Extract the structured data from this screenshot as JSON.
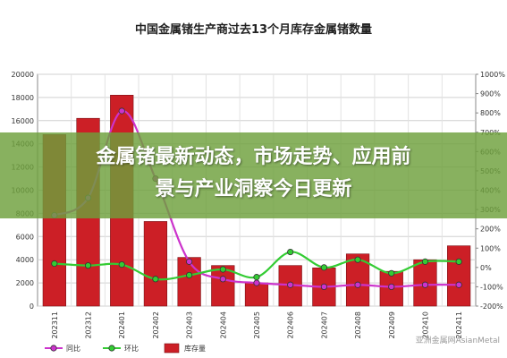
{
  "chart_data": {
    "type": "bar",
    "title": "中国金属锗生产商过去13个月库存金属锗数量",
    "categories": [
      "202311",
      "202312",
      "202401",
      "202402",
      "202403",
      "202404",
      "202405",
      "202406",
      "202407",
      "202408",
      "202409",
      "202410",
      "202411"
    ],
    "series": [
      {
        "name": "库存量",
        "type": "bar",
        "axis": "left",
        "color": "#cc1f26",
        "values": [
          14800,
          16200,
          18200,
          7300,
          4200,
          3500,
          2000,
          3500,
          3300,
          4500,
          3000,
          4000,
          5200
        ]
      },
      {
        "name": "同比",
        "type": "line",
        "axis": "right",
        "color": "#cc33cc",
        "values": [
          270,
          360,
          810,
          460,
          30,
          -60,
          -80,
          -90,
          -100,
          -90,
          -100,
          -90,
          -90
        ]
      },
      {
        "name": "环比",
        "type": "line",
        "axis": "right",
        "color": "#33cc33",
        "values": [
          20,
          10,
          15,
          -60,
          -40,
          -10,
          -50,
          80,
          0,
          40,
          -30,
          30,
          30
        ]
      }
    ],
    "ylim_left": [
      0,
      20000
    ],
    "yticks_left": [
      "0",
      "2000",
      "4000",
      "6000",
      "8000",
      "10000",
      "12000",
      "14000",
      "16000",
      "18000",
      "20000"
    ],
    "ylim_right": [
      -200,
      1000
    ],
    "yticks_right": [
      "-200%",
      "-100%",
      "0%",
      "100%",
      "200%",
      "300%",
      "400%",
      "500%",
      "600%",
      "700%",
      "800%",
      "900%",
      "1000%"
    ],
    "grid": true,
    "legend_position": "bottom-left"
  },
  "banner": {
    "line1": "金属锗最新动态，市场走势、应用前",
    "line2": "景与产业洞察今日更新"
  },
  "watermark": "亚洲金属网AsianMetal"
}
